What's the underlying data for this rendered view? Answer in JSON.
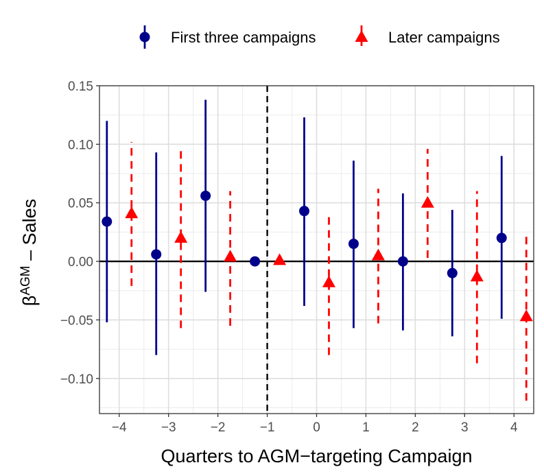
{
  "chart_data": {
    "type": "scatter",
    "subtype": "coefficient-plot-with-error-bars",
    "xlabel": "Quarters to AGM−targeting Campaign",
    "ylabel": {
      "prefix": "β",
      "superscript": "AGM",
      "suffix": " – Sales"
    },
    "xlim": [
      -4.4,
      4.4
    ],
    "ylim": [
      -0.13,
      0.15
    ],
    "x_ticks": [
      -4,
      -3,
      -2,
      -1,
      0,
      1,
      2,
      3,
      4
    ],
    "x_tick_labels": [
      "−4",
      "−3",
      "−2",
      "−1",
      "0",
      "1",
      "2",
      "3",
      "4"
    ],
    "y_ticks": [
      -0.1,
      -0.05,
      0.0,
      0.05,
      0.1,
      0.15
    ],
    "y_tick_labels": [
      "−0.10",
      "−0.05",
      "0.00",
      "0.05",
      "0.10",
      "0.15"
    ],
    "reference_lines": {
      "horizontal_zero": 0,
      "vertical_dashed_x": -1
    },
    "grid": true,
    "legend_position": "top",
    "series": [
      {
        "name": "First three campaigns",
        "color": "#00008b",
        "marker": "circle",
        "linestyle": "solid",
        "points": [
          {
            "x": -4.25,
            "y": 0.034,
            "lo": -0.052,
            "hi": 0.12
          },
          {
            "x": -3.25,
            "y": 0.006,
            "lo": -0.08,
            "hi": 0.093
          },
          {
            "x": -2.25,
            "y": 0.056,
            "lo": -0.026,
            "hi": 0.138
          },
          {
            "x": -1.25,
            "y": 0.0,
            "lo": 0.0,
            "hi": 0.0
          },
          {
            "x": -0.25,
            "y": 0.043,
            "lo": -0.038,
            "hi": 0.123
          },
          {
            "x": 0.75,
            "y": 0.015,
            "lo": -0.057,
            "hi": 0.086
          },
          {
            "x": 1.75,
            "y": 0.0,
            "lo": -0.059,
            "hi": 0.058
          },
          {
            "x": 2.75,
            "y": -0.01,
            "lo": -0.064,
            "hi": 0.044
          },
          {
            "x": 3.75,
            "y": 0.02,
            "lo": -0.049,
            "hi": 0.09
          }
        ]
      },
      {
        "name": "Later campaigns",
        "color": "#ff0000",
        "marker": "triangle",
        "linestyle": "dashed",
        "points": [
          {
            "x": -3.75,
            "y": 0.041,
            "lo": -0.021,
            "hi": 0.102
          },
          {
            "x": -2.75,
            "y": 0.02,
            "lo": -0.057,
            "hi": 0.097
          },
          {
            "x": -1.75,
            "y": 0.004,
            "lo": -0.055,
            "hi": 0.06
          },
          {
            "x": -0.75,
            "y": 0.001,
            "lo": 0.001,
            "hi": 0.001
          },
          {
            "x": 0.25,
            "y": -0.018,
            "lo": -0.08,
            "hi": 0.042
          },
          {
            "x": 1.25,
            "y": 0.005,
            "lo": -0.053,
            "hi": 0.062
          },
          {
            "x": 2.25,
            "y": 0.05,
            "lo": 0.003,
            "hi": 0.096
          },
          {
            "x": 3.25,
            "y": -0.013,
            "lo": -0.087,
            "hi": 0.06
          },
          {
            "x": 4.25,
            "y": -0.047,
            "lo": -0.119,
            "hi": 0.023
          }
        ]
      }
    ]
  }
}
